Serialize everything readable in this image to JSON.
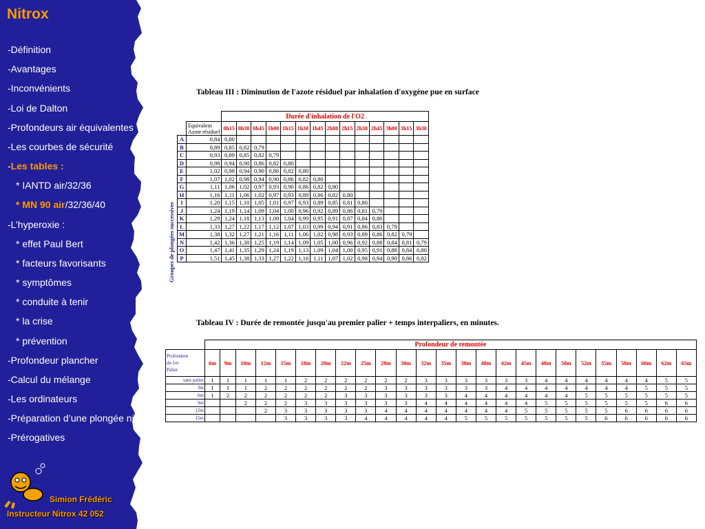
{
  "sidebar": {
    "title": "Nitrox",
    "items": [
      {
        "label": "-Définition"
      },
      {
        "label": "-Avantages"
      },
      {
        "label": "-Inconvénients"
      },
      {
        "label": "-Loi de Dalton"
      },
      {
        "label": "-Profondeurs air équivalentes"
      },
      {
        "label": "-Les courbes de sécurité"
      },
      {
        "prefix": "-",
        "label": "Les tables :"
      },
      {
        "label": "* IANTD air/32/36"
      },
      {
        "label": "* MN 90 air",
        "suffix": "/32/36/40"
      },
      {
        "label": "-L’hyperoxie :"
      },
      {
        "label": "* effet Paul Bert"
      },
      {
        "label": "* facteurs favorisants"
      },
      {
        "label": "* symptômes"
      },
      {
        "label": "* conduite à tenir"
      },
      {
        "label": "* la crise"
      },
      {
        "label": "* prévention"
      },
      {
        "label": "-Profondeur plancher"
      },
      {
        "label": "-Calcul du mélange"
      },
      {
        "label": "-Les ordinateurs"
      },
      {
        "label": "-Préparation d’une plongée nitrox"
      },
      {
        "label": "-Prérogatives"
      }
    ],
    "author_name": "Simion Frédéric",
    "author_role": "Instructeur Nitrox 42 052"
  },
  "colors": {
    "sidebar_bg": "#21209a",
    "accent": "#ff9900",
    "table_header": "#e00000",
    "row_label": "#1a1a8c"
  },
  "table3": {
    "title": "Tableau III  : Diminution de l'azote résiduel par inhalation d'oxygène pue en surface",
    "duration_header": "Durée d'inhalation de l'O2",
    "eq_label_1": "Equivalent",
    "eq_label_2": "Azote résiduel",
    "vertical_label": "Groupes de plongées successives",
    "times": [
      "0h15",
      "0h30",
      "0h45",
      "1h00",
      "1h15",
      "1h30",
      "1h45",
      "2h00",
      "2h15",
      "2h30",
      "2h45",
      "3h00",
      "3h15",
      "3h30"
    ],
    "rows": [
      {
        "group": "A",
        "equiv": "0,84",
        "values": [
          "0,80"
        ]
      },
      {
        "group": "B",
        "equiv": "0,89",
        "values": [
          "0,85",
          "0,82",
          "0,79"
        ]
      },
      {
        "group": "C",
        "equiv": "0,93",
        "values": [
          "0,89",
          "0,85",
          "0,82",
          "0,79"
        ]
      },
      {
        "group": "D",
        "equiv": "0,98",
        "values": [
          "0,94",
          "0,90",
          "0,86",
          "0,82",
          "0,80"
        ]
      },
      {
        "group": "E",
        "equiv": "1,02",
        "values": [
          "0,98",
          "0,94",
          "0,90",
          "0,86",
          "0,82",
          "0,80"
        ]
      },
      {
        "group": "F",
        "equiv": "1,07",
        "values": [
          "1,02",
          "0,98",
          "0,94",
          "0,90",
          "0,86",
          "0,82",
          "0,80"
        ]
      },
      {
        "group": "G",
        "equiv": "1,11",
        "values": [
          "1,06",
          "1,02",
          "0,97",
          "0,93",
          "0,90",
          "0,86",
          "0,82",
          "0,80"
        ]
      },
      {
        "group": "H",
        "equiv": "1,16",
        "values": [
          "1,11",
          "1,06",
          "1,02",
          "0,97",
          "0,93",
          "0,89",
          "0,86",
          "0,82",
          "0,80"
        ]
      },
      {
        "group": "I",
        "equiv": "1,20",
        "values": [
          "1,15",
          "1,10",
          "1,05",
          "1,01",
          "0,97",
          "0,93",
          "0,89",
          "0,85",
          "0,81",
          "0,80"
        ]
      },
      {
        "group": "J",
        "equiv": "1,24",
        "values": [
          "1,19",
          "1,14",
          "1,09",
          "1,04",
          "1,00",
          "0,96",
          "0,92",
          "0,89",
          "0,86",
          "0,81",
          "0,79"
        ]
      },
      {
        "group": "K",
        "equiv": "1,29",
        "values": [
          "1,24",
          "1,18",
          "1,13",
          "1,08",
          "1,04",
          "0,99",
          "0,95",
          "0,91",
          "0,87",
          "0,84",
          "0,80"
        ]
      },
      {
        "group": "L",
        "equiv": "1,33",
        "values": [
          "1,27",
          "1,22",
          "1,17",
          "1,12",
          "1,07",
          "1,03",
          "0,99",
          "0,94",
          "0,91",
          "0,86",
          "0,83",
          "0,79"
        ]
      },
      {
        "group": "M",
        "equiv": "1,38",
        "values": [
          "1,32",
          "1,27",
          "1,21",
          "1,16",
          "1,11",
          "1,06",
          "1,02",
          "0,98",
          "0,93",
          "0,89",
          "0,86",
          "0,82",
          "0,79"
        ]
      },
      {
        "group": "N",
        "equiv": "1,42",
        "values": [
          "1,36",
          "1,30",
          "1,25",
          "1,19",
          "1,14",
          "1,09",
          "1,05",
          "1,00",
          "0,96",
          "0,92",
          "0,88",
          "0,84",
          "0,81",
          "0,79"
        ]
      },
      {
        "group": "O",
        "equiv": "1,47",
        "values": [
          "1,41",
          "1,35",
          "1,29",
          "1,24",
          "1,19",
          "1,13",
          "1,09",
          "1,04",
          "1,00",
          "0,95",
          "0,91",
          "0,88",
          "0,84",
          "0,80"
        ]
      },
      {
        "group": "P",
        "equiv": "1,51",
        "values": [
          "1,45",
          "1,38",
          "1,33",
          "1,27",
          "1,22",
          "1,16",
          "1,11",
          "1,07",
          "1,02",
          "0,98",
          "0,94",
          "0,90",
          "0,86",
          "0,82"
        ]
      }
    ]
  },
  "table4": {
    "title": "Tableau IV  : Durée de remontée jusqu'au premier palier + temps interpaliers, en minutes.",
    "depth_header": "Profondeur de remontée",
    "first_stop_label": [
      "Profondeur",
      "du 1er",
      "Palier"
    ],
    "depths": [
      "6m",
      "9m",
      "10m",
      "12m",
      "15m",
      "18m",
      "20m",
      "22m",
      "25m",
      "28m",
      "30m",
      "32m",
      "35m",
      "38m",
      "40m",
      "42m",
      "45m",
      "48m",
      "50m",
      "52m",
      "55m",
      "58m",
      "60m",
      "62m",
      "65m"
    ],
    "rows": [
      {
        "label": "sans palier",
        "values": [
          "1",
          "1",
          "1",
          "1",
          "1",
          "2",
          "2",
          "2",
          "2",
          "2",
          "2",
          "3",
          "3",
          "3",
          "3",
          "3",
          "3",
          "4",
          "4",
          "4",
          "4",
          "4",
          "4",
          "5",
          "5"
        ]
      },
      {
        "label": "3m",
        "values": [
          "1",
          "1",
          "1",
          "2",
          "2",
          "2",
          "2",
          "2",
          "2",
          "3",
          "3",
          "3",
          "3",
          "3",
          "3",
          "4",
          "4",
          "4",
          "4",
          "4",
          "4",
          "4",
          "5",
          "5",
          "5"
        ]
      },
      {
        "label": "6m",
        "values": [
          "1",
          "2",
          "2",
          "2",
          "2",
          "2",
          "2",
          "3",
          "3",
          "3",
          "3",
          "3",
          "3",
          "4",
          "4",
          "4",
          "4",
          "4",
          "4",
          "5",
          "5",
          "5",
          "5",
          "5",
          "5"
        ]
      },
      {
        "label": "9m",
        "values": [
          "",
          "",
          "2",
          "2",
          "2",
          "3",
          "3",
          "3",
          "3",
          "3",
          "3",
          "4",
          "4",
          "4",
          "4",
          "4",
          "4",
          "5",
          "5",
          "5",
          "5",
          "5",
          "5",
          "6",
          "6"
        ]
      },
      {
        "label": "12m",
        "values": [
          "",
          "",
          "",
          "2",
          "3",
          "3",
          "3",
          "3",
          "3",
          "4",
          "4",
          "4",
          "4",
          "4",
          "4",
          "4",
          "5",
          "5",
          "5",
          "5",
          "5",
          "6",
          "6",
          "6",
          "6"
        ]
      },
      {
        "label": "15m",
        "values": [
          "",
          "",
          "",
          "",
          "3",
          "3",
          "3",
          "3",
          "4",
          "4",
          "4",
          "4",
          "4",
          "5",
          "5",
          "5",
          "5",
          "5",
          "5",
          "5",
          "6",
          "6",
          "6",
          "6",
          "6"
        ]
      }
    ]
  }
}
